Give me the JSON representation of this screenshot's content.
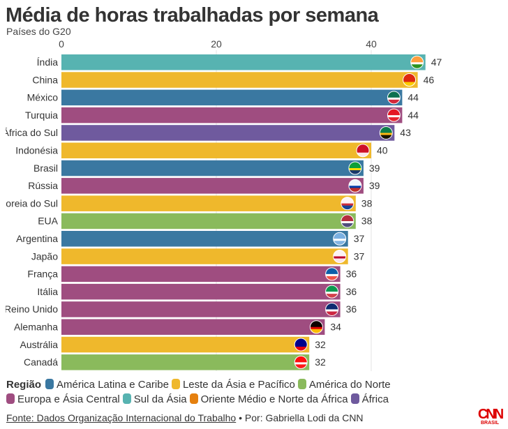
{
  "title": "Média de horas trabalhadas por semana",
  "subtitle": "Países do G20",
  "colors": {
    "America Latina e Caribe": "#3a78a1",
    "Leste da Ásia e Pacífico": "#efb82c",
    "América do Norte": "#8aba5c",
    "Europa e Ásia Central": "#9f4d80",
    "Sul da Ásia": "#57b3b1",
    "Oriente Médio e Norte da África": "#e5800f",
    "África": "#6f5a9e"
  },
  "chart_data": {
    "type": "bar",
    "orientation": "horizontal",
    "xlim": [
      0,
      49
    ],
    "xticks": [
      0,
      20,
      40
    ],
    "grid": true,
    "categories": [
      "Índia",
      "China",
      "México",
      "Turquia",
      "África do Sul",
      "Indonésia",
      "Brasil",
      "Rússia",
      "Coreia do Sul",
      "EUA",
      "Argentina",
      "Japão",
      "França",
      "Itália",
      "Reino Unido",
      "Alemanha",
      "Austrália",
      "Canadá"
    ],
    "values": [
      47,
      46,
      44,
      44,
      43,
      40,
      39,
      39,
      38,
      38,
      37,
      37,
      36,
      36,
      36,
      34,
      32,
      32
    ],
    "regions": [
      "Sul da Ásia",
      "Leste da Ásia e Pacífico",
      "America Latina e Caribe",
      "Europa e Ásia Central",
      "África",
      "Leste da Ásia e Pacífico",
      "America Latina e Caribe",
      "Europa e Ásia Central",
      "Leste da Ásia e Pacífico",
      "América do Norte",
      "America Latina e Caribe",
      "Leste da Ásia e Pacífico",
      "Europa e Ásia Central",
      "Europa e Ásia Central",
      "Europa e Ásia Central",
      "Europa e Ásia Central",
      "Leste da Ásia e Pacífico",
      "América do Norte"
    ],
    "flags": [
      [
        "#f93",
        "#fff",
        "#138808"
      ],
      [
        "#de2910",
        "#de2910",
        "#ffde00"
      ],
      [
        "#006847",
        "#fff",
        "#ce1126"
      ],
      [
        "#e30a17",
        "#fff",
        "#e30a17"
      ],
      [
        "#007a4d",
        "#ffb612",
        "#000"
      ],
      [
        "#ce1126",
        "#ce1126",
        "#fff"
      ],
      [
        "#009c3b",
        "#ffdf00",
        "#002776"
      ],
      [
        "#fff",
        "#0039a6",
        "#d52b1e"
      ],
      [
        "#fff",
        "#cd2e3a",
        "#0047a0"
      ],
      [
        "#b22234",
        "#fff",
        "#3c3b6e"
      ],
      [
        "#74acdf",
        "#fff",
        "#74acdf"
      ],
      [
        "#fff",
        "#bc002d",
        "#fff"
      ],
      [
        "#0055a4",
        "#fff",
        "#ef4135"
      ],
      [
        "#009246",
        "#fff",
        "#ce2b37"
      ],
      [
        "#012169",
        "#fff",
        "#c8102e"
      ],
      [
        "#000",
        "#dd0000",
        "#ffce00"
      ],
      [
        "#00008b",
        "#00008b",
        "#ff0000"
      ],
      [
        "#ff0000",
        "#fff",
        "#ff0000"
      ]
    ]
  },
  "legend": {
    "title": "Região",
    "items": [
      "América Latina e Caribe",
      "Leste da Ásia e Pacífico",
      "América do Norte",
      "Europa e Ásia Central",
      "Sul da Ásia",
      "Oriente Médio e Norte da África",
      "África"
    ],
    "colors": [
      "#3a78a1",
      "#efb82c",
      "#8aba5c",
      "#9f4d80",
      "#57b3b1",
      "#e5800f",
      "#6f5a9e"
    ]
  },
  "footer": {
    "source": "Fonte: Dados Organização Internacional do Trabalho",
    "sep": " • ",
    "author": "Por: Gabriella Lodi da CNN"
  },
  "logo": {
    "text": "CNN",
    "sub": "BRASIL"
  }
}
